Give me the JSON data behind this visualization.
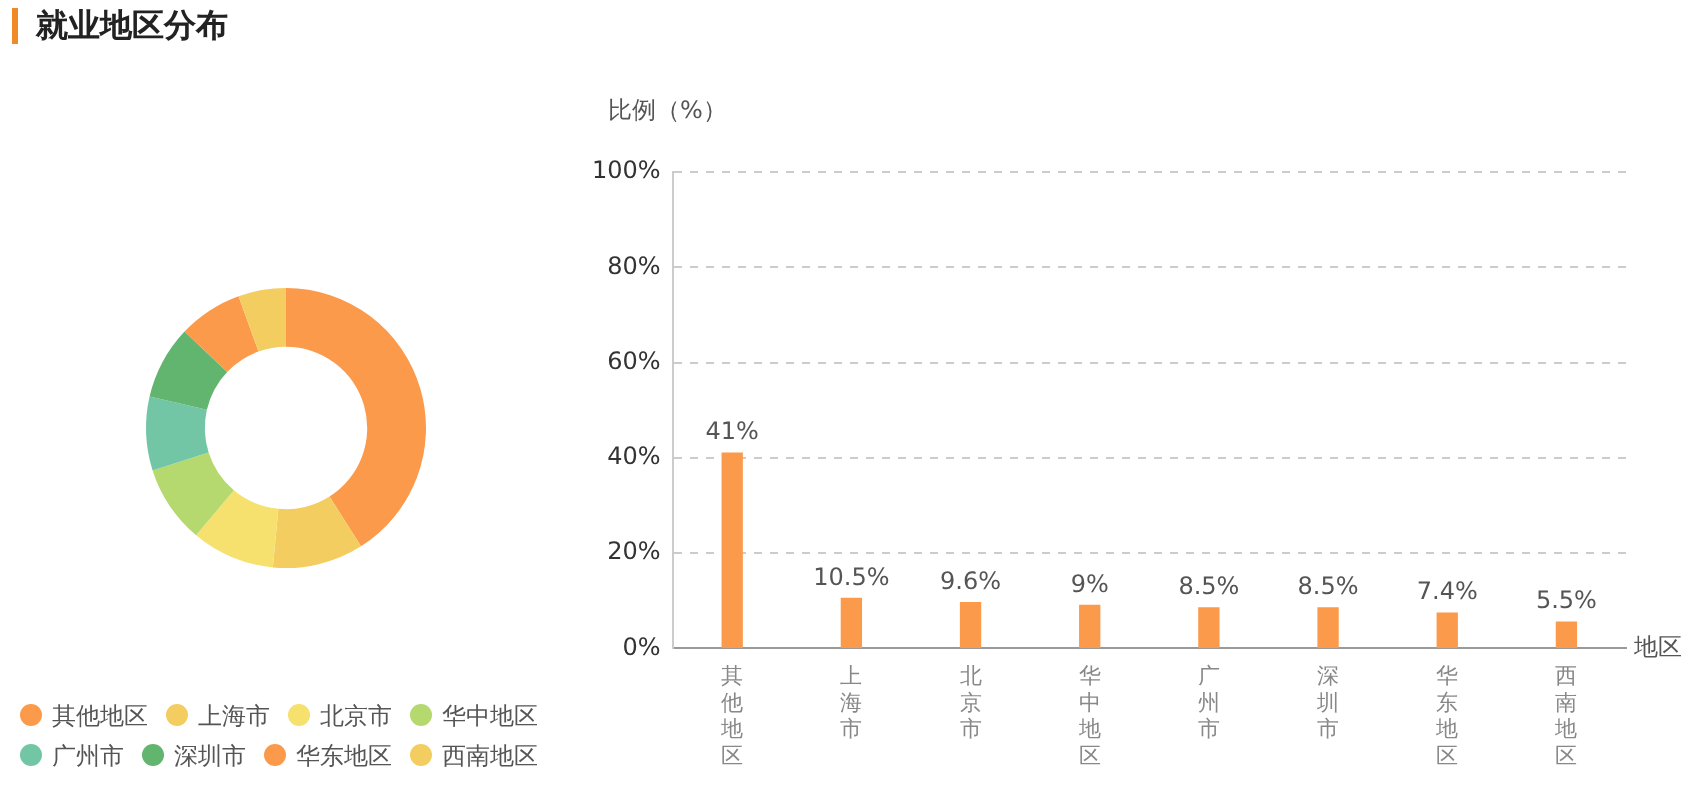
{
  "chart_data": [
    {
      "type": "donut",
      "title": "就业地区分布",
      "categories": [
        "其他地区",
        "上海市",
        "北京市",
        "华中地区",
        "广州市",
        "深圳市",
        "华东地区",
        "西南地区"
      ],
      "values": [
        41,
        10.5,
        9.6,
        9,
        8.5,
        8.5,
        7.4,
        5.5
      ],
      "colors": [
        "#fb9a4b",
        "#f4cd60",
        "#f6e06e",
        "#b6d96f",
        "#72c6a6",
        "#62b56e",
        "#fb9a4b",
        "#f4cd60"
      ],
      "legend": "bottom"
    },
    {
      "type": "bar",
      "ylabel": "比例（%）",
      "xlabel": "地区",
      "categories": [
        "其他地区",
        "上海市",
        "北京市",
        "华中地区",
        "广州市",
        "深圳市",
        "华东地区",
        "西南地区"
      ],
      "values": [
        41,
        10.5,
        9.6,
        9,
        8.5,
        8.5,
        7.4,
        5.5
      ],
      "color": "#fb9a4b",
      "value_labels": [
        "41%",
        "10.5%",
        "9.6%",
        "9%",
        "8.5%",
        "8.5%",
        "7.4%",
        "5.5%"
      ],
      "ylim": [
        0,
        100
      ],
      "yticks": [
        {
          "value": 0,
          "label": "0%"
        },
        {
          "value": 20,
          "label": "20%"
        },
        {
          "value": 40,
          "label": "40%"
        },
        {
          "value": 60,
          "label": "60%"
        },
        {
          "value": 80,
          "label": "80%"
        },
        {
          "value": 100,
          "label": "100%"
        }
      ],
      "grid": "y",
      "legend": false
    }
  ]
}
